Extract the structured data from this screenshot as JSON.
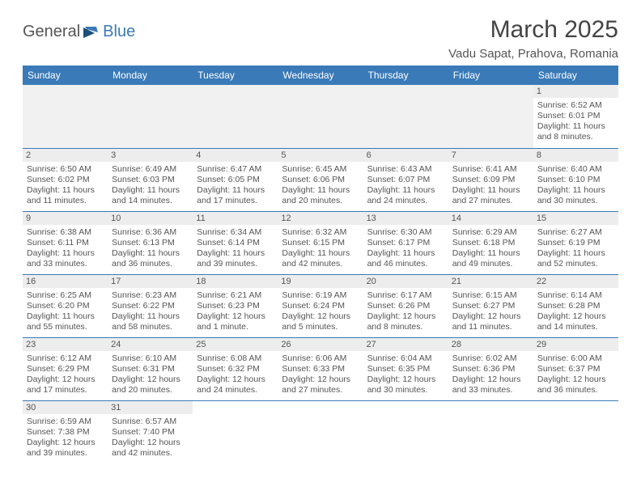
{
  "logo": {
    "text1": "General",
    "text2": "Blue"
  },
  "title": "March 2025",
  "location": "Vadu Sapat, Prahova, Romania",
  "colors": {
    "header_bg": "#3a7ab8",
    "header_text": "#ffffff",
    "daynum_bg": "#ededed",
    "text": "#555555",
    "border": "#3a7ab8"
  },
  "day_headers": [
    "Sunday",
    "Monday",
    "Tuesday",
    "Wednesday",
    "Thursday",
    "Friday",
    "Saturday"
  ],
  "weeks": [
    [
      null,
      null,
      null,
      null,
      null,
      null,
      {
        "n": "1",
        "sunrise": "6:52 AM",
        "sunset": "6:01 PM",
        "daylight": "11 hours and 8 minutes."
      }
    ],
    [
      {
        "n": "2",
        "sunrise": "6:50 AM",
        "sunset": "6:02 PM",
        "daylight": "11 hours and 11 minutes."
      },
      {
        "n": "3",
        "sunrise": "6:49 AM",
        "sunset": "6:03 PM",
        "daylight": "11 hours and 14 minutes."
      },
      {
        "n": "4",
        "sunrise": "6:47 AM",
        "sunset": "6:05 PM",
        "daylight": "11 hours and 17 minutes."
      },
      {
        "n": "5",
        "sunrise": "6:45 AM",
        "sunset": "6:06 PM",
        "daylight": "11 hours and 20 minutes."
      },
      {
        "n": "6",
        "sunrise": "6:43 AM",
        "sunset": "6:07 PM",
        "daylight": "11 hours and 24 minutes."
      },
      {
        "n": "7",
        "sunrise": "6:41 AM",
        "sunset": "6:09 PM",
        "daylight": "11 hours and 27 minutes."
      },
      {
        "n": "8",
        "sunrise": "6:40 AM",
        "sunset": "6:10 PM",
        "daylight": "11 hours and 30 minutes."
      }
    ],
    [
      {
        "n": "9",
        "sunrise": "6:38 AM",
        "sunset": "6:11 PM",
        "daylight": "11 hours and 33 minutes."
      },
      {
        "n": "10",
        "sunrise": "6:36 AM",
        "sunset": "6:13 PM",
        "daylight": "11 hours and 36 minutes."
      },
      {
        "n": "11",
        "sunrise": "6:34 AM",
        "sunset": "6:14 PM",
        "daylight": "11 hours and 39 minutes."
      },
      {
        "n": "12",
        "sunrise": "6:32 AM",
        "sunset": "6:15 PM",
        "daylight": "11 hours and 42 minutes."
      },
      {
        "n": "13",
        "sunrise": "6:30 AM",
        "sunset": "6:17 PM",
        "daylight": "11 hours and 46 minutes."
      },
      {
        "n": "14",
        "sunrise": "6:29 AM",
        "sunset": "6:18 PM",
        "daylight": "11 hours and 49 minutes."
      },
      {
        "n": "15",
        "sunrise": "6:27 AM",
        "sunset": "6:19 PM",
        "daylight": "11 hours and 52 minutes."
      }
    ],
    [
      {
        "n": "16",
        "sunrise": "6:25 AM",
        "sunset": "6:20 PM",
        "daylight": "11 hours and 55 minutes."
      },
      {
        "n": "17",
        "sunrise": "6:23 AM",
        "sunset": "6:22 PM",
        "daylight": "11 hours and 58 minutes."
      },
      {
        "n": "18",
        "sunrise": "6:21 AM",
        "sunset": "6:23 PM",
        "daylight": "12 hours and 1 minute."
      },
      {
        "n": "19",
        "sunrise": "6:19 AM",
        "sunset": "6:24 PM",
        "daylight": "12 hours and 5 minutes."
      },
      {
        "n": "20",
        "sunrise": "6:17 AM",
        "sunset": "6:26 PM",
        "daylight": "12 hours and 8 minutes."
      },
      {
        "n": "21",
        "sunrise": "6:15 AM",
        "sunset": "6:27 PM",
        "daylight": "12 hours and 11 minutes."
      },
      {
        "n": "22",
        "sunrise": "6:14 AM",
        "sunset": "6:28 PM",
        "daylight": "12 hours and 14 minutes."
      }
    ],
    [
      {
        "n": "23",
        "sunrise": "6:12 AM",
        "sunset": "6:29 PM",
        "daylight": "12 hours and 17 minutes."
      },
      {
        "n": "24",
        "sunrise": "6:10 AM",
        "sunset": "6:31 PM",
        "daylight": "12 hours and 20 minutes."
      },
      {
        "n": "25",
        "sunrise": "6:08 AM",
        "sunset": "6:32 PM",
        "daylight": "12 hours and 24 minutes."
      },
      {
        "n": "26",
        "sunrise": "6:06 AM",
        "sunset": "6:33 PM",
        "daylight": "12 hours and 27 minutes."
      },
      {
        "n": "27",
        "sunrise": "6:04 AM",
        "sunset": "6:35 PM",
        "daylight": "12 hours and 30 minutes."
      },
      {
        "n": "28",
        "sunrise": "6:02 AM",
        "sunset": "6:36 PM",
        "daylight": "12 hours and 33 minutes."
      },
      {
        "n": "29",
        "sunrise": "6:00 AM",
        "sunset": "6:37 PM",
        "daylight": "12 hours and 36 minutes."
      }
    ],
    [
      {
        "n": "30",
        "sunrise": "6:59 AM",
        "sunset": "7:38 PM",
        "daylight": "12 hours and 39 minutes."
      },
      {
        "n": "31",
        "sunrise": "6:57 AM",
        "sunset": "7:40 PM",
        "daylight": "12 hours and 42 minutes."
      },
      null,
      null,
      null,
      null,
      null
    ]
  ],
  "labels": {
    "sunrise": "Sunrise:",
    "sunset": "Sunset:",
    "daylight": "Daylight:"
  }
}
